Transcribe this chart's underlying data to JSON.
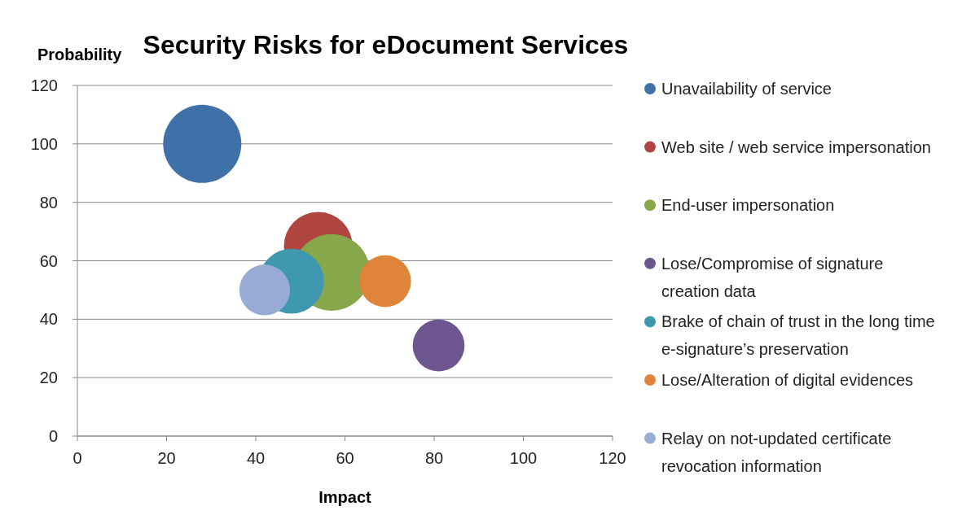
{
  "chart_data": {
    "type": "bubble",
    "title": "Security Risks for eDocument Services",
    "xlabel": "Impact",
    "ylabel": "Probability",
    "xlim": [
      0,
      120
    ],
    "xticks": [
      0,
      20,
      40,
      60,
      80,
      100,
      120
    ],
    "ylim": [
      0,
      120
    ],
    "yticks": [
      0,
      20,
      40,
      60,
      80,
      100,
      120
    ],
    "grid": "y",
    "legend": "right",
    "series": [
      {
        "name": "Unavailability of service",
        "color": "#4070a8",
        "x": [
          28
        ],
        "values": [
          100
        ],
        "sizes": [
          1
        ]
      },
      {
        "name": "Web site / web service impersonation",
        "color": "#b04440",
        "x": [
          54
        ],
        "values": [
          65
        ],
        "sizes": [
          0.77
        ]
      },
      {
        "name": "End-user impersonation",
        "color": "#86a84a",
        "x": [
          57
        ],
        "values": [
          56
        ],
        "sizes": [
          0.96
        ]
      },
      {
        "name": "Lose/Compromise of signature creation data",
        "color": "#6d5590",
        "x": [
          81
        ],
        "values": [
          31
        ],
        "sizes": [
          0.44
        ]
      },
      {
        "name": "Brake of chain of trust in the long time e-signature’s preservation",
        "color": "#3d98b0",
        "x": [
          48
        ],
        "values": [
          53
        ],
        "sizes": [
          0.69
        ]
      },
      {
        "name": "Lose/Alteration of digital evidences",
        "color": "#e0843a",
        "x": [
          69
        ],
        "values": [
          53
        ],
        "sizes": [
          0.44
        ]
      },
      {
        "name": "Relay on not-updated certificate revocation information",
        "color": "#97abd4",
        "x": [
          42
        ],
        "values": [
          50
        ],
        "sizes": [
          0.42
        ]
      }
    ]
  }
}
